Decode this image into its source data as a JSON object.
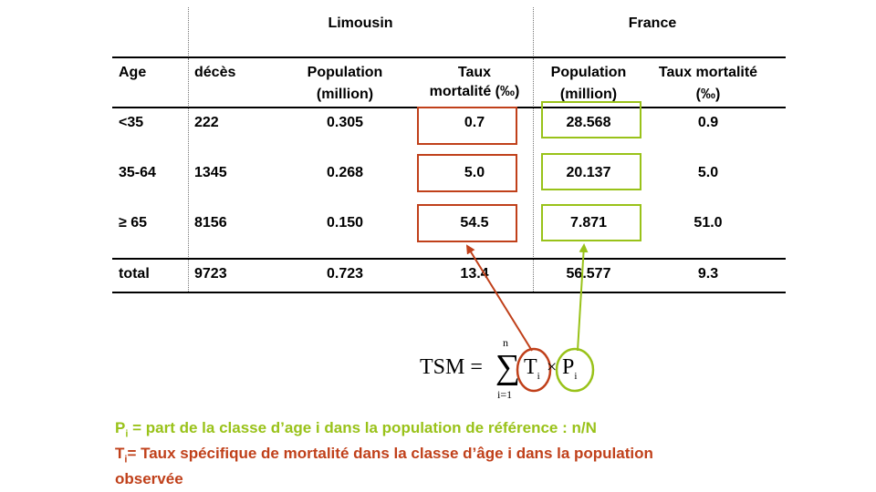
{
  "table": {
    "group_headers": {
      "limousin": "Limousin",
      "france": "France"
    },
    "columns": {
      "age": "Age",
      "deces": "décès",
      "population_line1": "Population",
      "population_line2": "(million)",
      "taux_line1": "Taux",
      "taux_line2": "mortalité (‰)",
      "fr_population_line1": "Population",
      "fr_population_line2": "(million)",
      "fr_taux_line1": "Taux mortalité",
      "fr_taux_line2": "(‰)"
    },
    "rows": [
      {
        "age": "<35",
        "deces": "222",
        "population": "0.305",
        "taux": "0.7",
        "fr_population": "28.568",
        "fr_taux": "0.9"
      },
      {
        "age": "35-64",
        "deces": "1345",
        "population": "0.268",
        "taux": "5.0",
        "fr_population": "20.137",
        "fr_taux": "5.0"
      },
      {
        "age": "≥ 65",
        "deces": "8156",
        "population": "0.150",
        "taux": "54.5",
        "fr_population": "7.871",
        "fr_taux": "51.0"
      }
    ],
    "total": {
      "age": "total",
      "deces": "9723",
      "population": "0.723",
      "taux": "13.4",
      "fr_population": "56.577",
      "fr_taux": "9.3"
    }
  },
  "formula": {
    "lhs": "TSM =",
    "sum_top": "n",
    "sum_bottom": "i=1",
    "sigma": "∑",
    "t": "T",
    "t_sub": "i",
    "times": "×",
    "p": "P",
    "p_sub": "i"
  },
  "legend": {
    "p_symbol": "P",
    "p_sub": "i",
    "p_text": " = part de la classe d’age i dans la population de référence : n/N",
    "t_symbol": "T",
    "t_sub": "i",
    "t_text": "= Taux spécifique de mortalité dans la classe d’âge i dans la population",
    "t_text_line2": "observée"
  },
  "colors": {
    "red": "#c0401a",
    "green": "#99c219"
  }
}
